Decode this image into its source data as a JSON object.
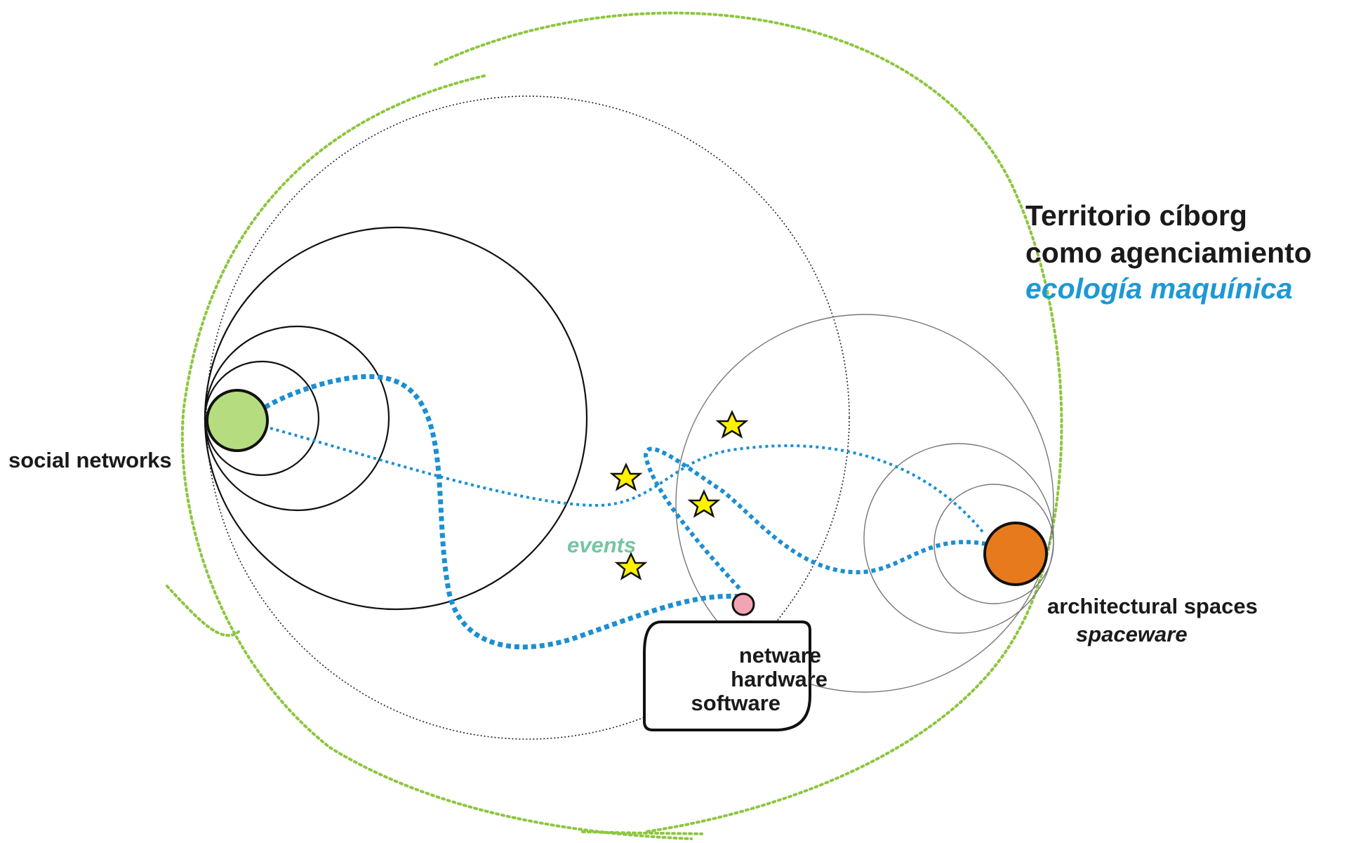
{
  "title": {
    "line1": "Territorio cíborg",
    "line2": "como agenciamiento",
    "subtitle": "ecología maquínica"
  },
  "nodes": {
    "social": {
      "label": "social networks"
    },
    "architecture": {
      "label": "architectural spaces",
      "sublabel": "spaceware"
    },
    "events": {
      "label": "events"
    },
    "infrastructure": {
      "lines": [
        "netware",
        "hardware",
        "software"
      ]
    }
  },
  "colors": {
    "green_dotted": "#8dc63f",
    "blue_dotted": "#1b8fd2",
    "social_node": "#b5dd7f",
    "architecture_node": "#e87a1e",
    "infrastructure_node": "#f2a4b4",
    "star": "#fff200",
    "events_text": "#74c6a2"
  }
}
